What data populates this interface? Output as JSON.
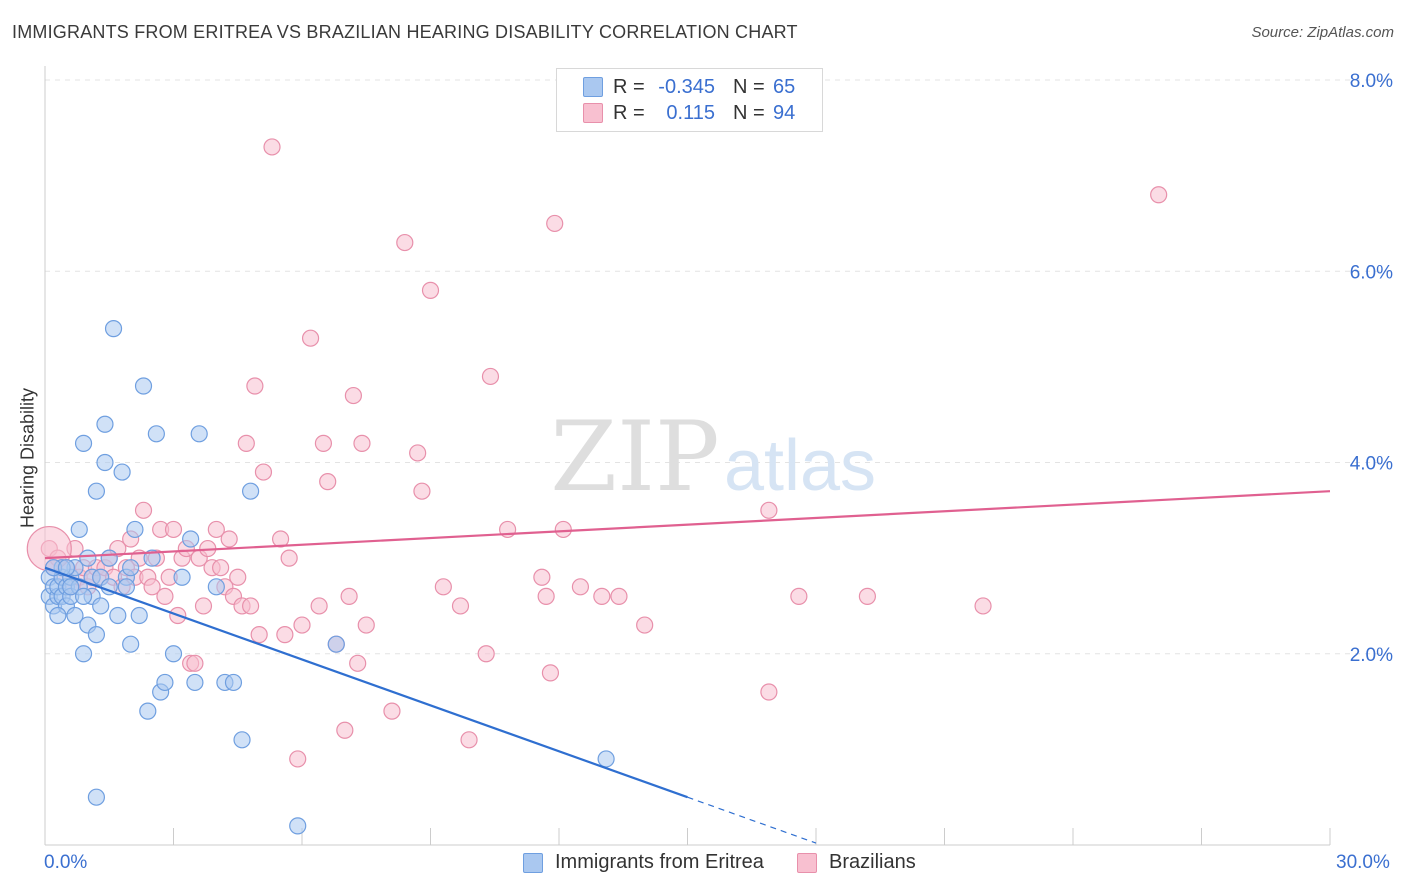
{
  "header": {
    "title": "IMMIGRANTS FROM ERITREA VS BRAZILIAN HEARING DISABILITY CORRELATION CHART",
    "source": "Source: ZipAtlas.com"
  },
  "legend": {
    "rows": [
      {
        "r_label": "R =",
        "r_value": "-0.345",
        "n_label": "N =",
        "n_value": "65"
      },
      {
        "r_label": "R =",
        "r_value": "0.115",
        "n_label": "N =",
        "n_value": "94"
      }
    ]
  },
  "bottom_legend": {
    "eritrea": "Immigrants from Eritrea",
    "brazilians": "Brazilians"
  },
  "axes": {
    "ylabel": "Hearing Disability",
    "x_min_label": "0.0%",
    "x_max_label": "30.0%",
    "y_ticks": [
      "2.0%",
      "4.0%",
      "6.0%",
      "8.0%"
    ]
  },
  "colors": {
    "eritrea_fill": "#aac8f0",
    "eritrea_stroke": "#6f9fe0",
    "eritrea_line": "#2f6fd0",
    "brazil_fill": "#f8c0d0",
    "brazil_stroke": "#e890ab",
    "brazil_line": "#e06090",
    "grid": "#e3e3e3",
    "axis_text": "#3a6fd0"
  },
  "chart_data": {
    "type": "scatter",
    "xlim": [
      0,
      30
    ],
    "ylim": [
      0,
      8.0
    ],
    "x_unit": "%",
    "y_unit": "%",
    "grid": true,
    "legend_placement": "top-center",
    "series": [
      {
        "name": "Immigrants from Eritrea",
        "points": [
          [
            0.1,
            2.8
          ],
          [
            0.1,
            2.6
          ],
          [
            0.2,
            2.5
          ],
          [
            0.2,
            2.7
          ],
          [
            0.3,
            2.6
          ],
          [
            0.3,
            2.7
          ],
          [
            0.4,
            2.6
          ],
          [
            0.4,
            2.8
          ],
          [
            0.5,
            2.5
          ],
          [
            0.5,
            2.7
          ],
          [
            0.6,
            2.6
          ],
          [
            0.6,
            2.8
          ],
          [
            0.7,
            2.9
          ],
          [
            0.7,
            2.4
          ],
          [
            0.8,
            2.7
          ],
          [
            0.8,
            3.3
          ],
          [
            0.9,
            2.0
          ],
          [
            0.9,
            4.2
          ],
          [
            1.0,
            3.0
          ],
          [
            1.0,
            2.3
          ],
          [
            1.1,
            2.8
          ],
          [
            1.1,
            2.6
          ],
          [
            1.2,
            3.7
          ],
          [
            1.2,
            2.2
          ],
          [
            1.3,
            2.5
          ],
          [
            1.3,
            2.8
          ],
          [
            1.4,
            4.4
          ],
          [
            1.4,
            4.0
          ],
          [
            1.5,
            3.0
          ],
          [
            1.6,
            5.4
          ],
          [
            1.7,
            2.4
          ],
          [
            1.8,
            3.9
          ],
          [
            1.9,
            2.8
          ],
          [
            1.9,
            2.7
          ],
          [
            2.0,
            2.1
          ],
          [
            2.1,
            3.3
          ],
          [
            2.2,
            2.4
          ],
          [
            2.3,
            4.8
          ],
          [
            2.4,
            1.4
          ],
          [
            2.5,
            3.0
          ],
          [
            2.6,
            4.3
          ],
          [
            2.7,
            1.6
          ],
          [
            2.8,
            1.7
          ],
          [
            3.0,
            2.0
          ],
          [
            3.2,
            2.8
          ],
          [
            3.4,
            3.2
          ],
          [
            3.5,
            1.7
          ],
          [
            3.6,
            4.3
          ],
          [
            4.0,
            2.7
          ],
          [
            4.2,
            1.7
          ],
          [
            4.4,
            1.7
          ],
          [
            4.6,
            1.1
          ],
          [
            4.8,
            3.7
          ],
          [
            1.2,
            0.5
          ],
          [
            5.9,
            0.2
          ],
          [
            6.8,
            2.1
          ],
          [
            13.1,
            0.9
          ],
          [
            0.3,
            2.4
          ],
          [
            0.6,
            2.7
          ],
          [
            0.9,
            2.6
          ],
          [
            1.5,
            2.7
          ],
          [
            0.4,
            2.9
          ],
          [
            2.0,
            2.9
          ],
          [
            0.2,
            2.9
          ],
          [
            0.5,
            2.9
          ]
        ]
      },
      {
        "name": "Brazilians",
        "points": [
          [
            0.1,
            3.1
          ],
          [
            0.2,
            2.9
          ],
          [
            0.3,
            3.0
          ],
          [
            0.4,
            2.8
          ],
          [
            0.5,
            2.9
          ],
          [
            0.6,
            2.7
          ],
          [
            0.7,
            3.1
          ],
          [
            0.8,
            2.8
          ],
          [
            0.9,
            2.9
          ],
          [
            1.0,
            2.7
          ],
          [
            1.1,
            2.8
          ],
          [
            1.2,
            2.9
          ],
          [
            1.3,
            2.8
          ],
          [
            1.4,
            2.9
          ],
          [
            1.5,
            3.0
          ],
          [
            1.6,
            2.8
          ],
          [
            1.7,
            3.1
          ],
          [
            1.8,
            2.7
          ],
          [
            1.9,
            2.9
          ],
          [
            2.0,
            3.2
          ],
          [
            2.1,
            2.8
          ],
          [
            2.2,
            3.0
          ],
          [
            2.3,
            3.5
          ],
          [
            2.4,
            2.8
          ],
          [
            2.5,
            2.7
          ],
          [
            2.6,
            3.0
          ],
          [
            2.7,
            3.3
          ],
          [
            2.8,
            2.6
          ],
          [
            2.9,
            2.8
          ],
          [
            3.0,
            3.3
          ],
          [
            3.1,
            2.4
          ],
          [
            3.2,
            3.0
          ],
          [
            3.3,
            3.1
          ],
          [
            3.4,
            1.9
          ],
          [
            3.5,
            1.9
          ],
          [
            3.6,
            3.0
          ],
          [
            3.7,
            2.5
          ],
          [
            3.8,
            3.1
          ],
          [
            3.9,
            2.9
          ],
          [
            4.0,
            3.3
          ],
          [
            4.1,
            2.9
          ],
          [
            4.2,
            2.7
          ],
          [
            4.3,
            3.2
          ],
          [
            4.4,
            2.6
          ],
          [
            4.5,
            2.8
          ],
          [
            4.6,
            2.5
          ],
          [
            4.7,
            4.2
          ],
          [
            4.8,
            2.5
          ],
          [
            4.9,
            4.8
          ],
          [
            5.0,
            2.2
          ],
          [
            5.1,
            3.9
          ],
          [
            5.3,
            7.3
          ],
          [
            5.5,
            3.2
          ],
          [
            5.6,
            2.2
          ],
          [
            5.7,
            3.0
          ],
          [
            5.9,
            0.9
          ],
          [
            6.0,
            2.3
          ],
          [
            6.2,
            5.3
          ],
          [
            6.4,
            2.5
          ],
          [
            6.5,
            4.2
          ],
          [
            6.6,
            3.8
          ],
          [
            6.8,
            2.1
          ],
          [
            7.0,
            1.2
          ],
          [
            7.1,
            2.6
          ],
          [
            7.2,
            4.7
          ],
          [
            7.3,
            1.9
          ],
          [
            7.4,
            4.2
          ],
          [
            7.5,
            2.3
          ],
          [
            8.1,
            1.4
          ],
          [
            8.4,
            6.3
          ],
          [
            8.7,
            4.1
          ],
          [
            8.8,
            3.7
          ],
          [
            9.0,
            5.8
          ],
          [
            9.3,
            2.7
          ],
          [
            9.7,
            2.5
          ],
          [
            9.9,
            1.1
          ],
          [
            10.3,
            2.0
          ],
          [
            10.4,
            4.9
          ],
          [
            10.8,
            3.3
          ],
          [
            11.6,
            2.8
          ],
          [
            11.7,
            2.6
          ],
          [
            11.8,
            1.8
          ],
          [
            11.9,
            6.5
          ],
          [
            12.1,
            3.3
          ],
          [
            12.5,
            2.7
          ],
          [
            13.0,
            2.6
          ],
          [
            13.4,
            2.6
          ],
          [
            14.0,
            2.3
          ],
          [
            16.9,
            3.5
          ],
          [
            16.9,
            1.6
          ],
          [
            17.6,
            2.6
          ],
          [
            19.2,
            2.6
          ],
          [
            21.9,
            2.5
          ],
          [
            26.0,
            6.8
          ]
        ]
      }
    ],
    "trendlines": [
      {
        "series": "Immigrants from Eritrea",
        "x": [
          0.0,
          15.0
        ],
        "y": [
          2.9,
          0.5
        ],
        "dashed_extension_to_x": 18.0
      },
      {
        "series": "Brazilians",
        "x": [
          0.0,
          30.0
        ],
        "y": [
          3.0,
          3.7
        ]
      }
    ]
  }
}
